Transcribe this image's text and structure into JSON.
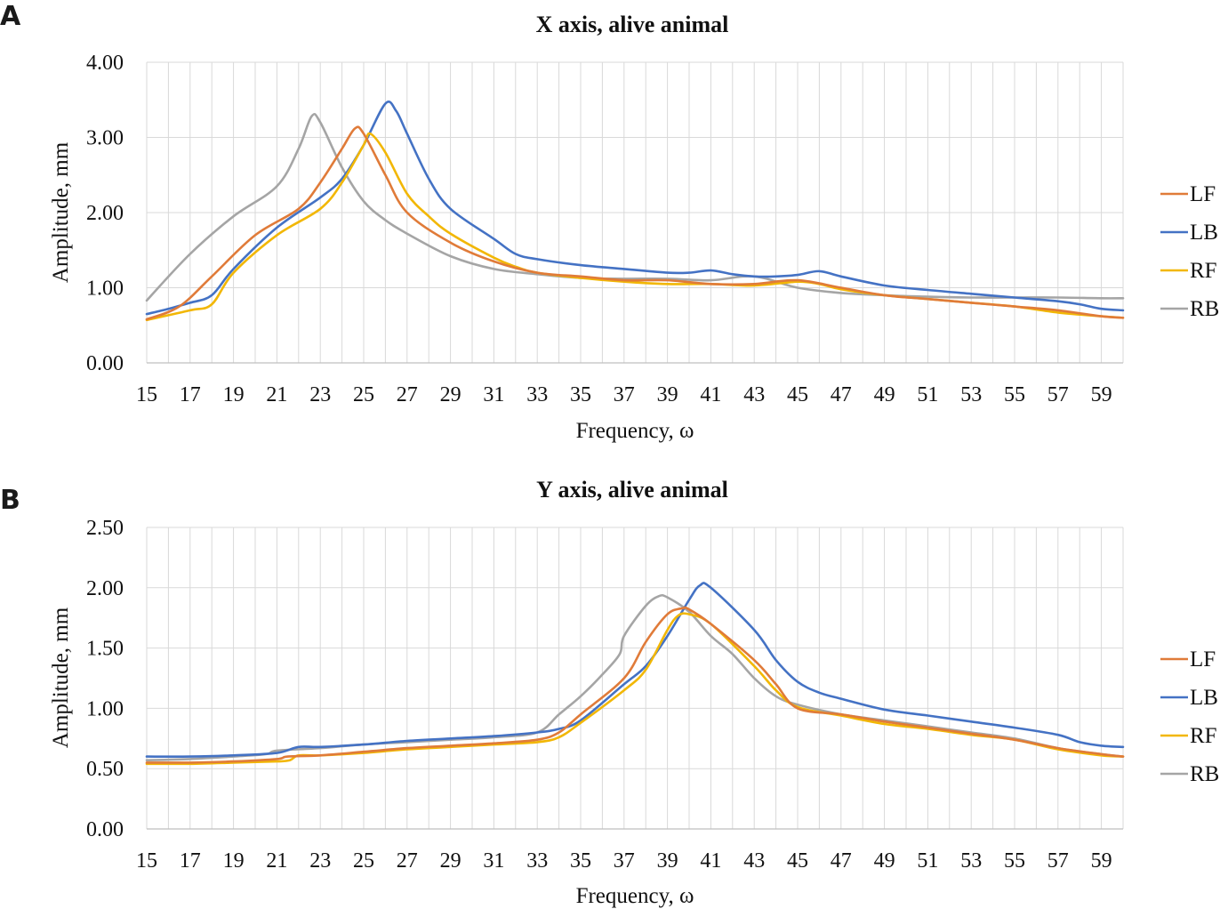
{
  "colors": {
    "LF": "#E07B39",
    "LB": "#4472C4",
    "RF": "#F2B705",
    "RB": "#A5A5A5"
  },
  "chart_data": [
    {
      "panel": "A",
      "type": "line",
      "title": "X axis, alive animal",
      "xlabel": "Frequency, ω",
      "ylabel": "Amplitude, mm",
      "xlim": [
        15,
        60
      ],
      "ylim": [
        0,
        4
      ],
      "xticks": [
        15,
        17,
        19,
        21,
        23,
        25,
        27,
        29,
        31,
        33,
        35,
        37,
        39,
        41,
        43,
        45,
        47,
        49,
        51,
        53,
        55,
        57,
        59
      ],
      "yticks": [
        "0.00",
        "1.00",
        "2.00",
        "3.00",
        "4.00"
      ],
      "ytick_values": [
        0,
        1,
        2,
        3,
        4
      ],
      "grid": "vertical-and-horizontal",
      "legend_position": "right",
      "series": [
        {
          "name": "LF",
          "x": [
            15,
            16.5,
            18,
            20,
            22,
            23,
            24,
            24.6,
            25,
            26,
            27,
            29,
            31,
            33,
            35,
            37,
            39,
            41,
            43,
            45,
            47,
            49,
            51,
            53,
            55,
            57,
            59,
            60
          ],
          "y": [
            0.58,
            0.75,
            1.15,
            1.7,
            2.05,
            2.4,
            2.85,
            3.12,
            3.05,
            2.5,
            2.0,
            1.6,
            1.35,
            1.2,
            1.15,
            1.1,
            1.1,
            1.05,
            1.05,
            1.1,
            1.0,
            0.9,
            0.85,
            0.8,
            0.75,
            0.7,
            0.62,
            0.6
          ]
        },
        {
          "name": "LB",
          "x": [
            15,
            16,
            17,
            18,
            19,
            21,
            23,
            24,
            25,
            26,
            26.5,
            27,
            28,
            29,
            31,
            32,
            33,
            35,
            37,
            39,
            40,
            41,
            42,
            43,
            44,
            45,
            46,
            47,
            49,
            51,
            53,
            55,
            57,
            58,
            59,
            60
          ],
          "y": [
            0.65,
            0.72,
            0.8,
            0.9,
            1.25,
            1.8,
            2.2,
            2.45,
            2.9,
            3.45,
            3.35,
            3.05,
            2.45,
            2.05,
            1.65,
            1.45,
            1.38,
            1.3,
            1.25,
            1.2,
            1.2,
            1.23,
            1.18,
            1.15,
            1.15,
            1.17,
            1.22,
            1.15,
            1.03,
            0.97,
            0.92,
            0.87,
            0.82,
            0.78,
            0.72,
            0.7
          ]
        },
        {
          "name": "RF",
          "x": [
            15,
            17,
            18,
            19,
            21,
            23,
            24,
            25,
            25.3,
            26,
            27,
            28,
            29,
            31,
            32,
            33,
            35,
            37,
            39,
            41,
            43,
            45,
            46,
            47,
            49,
            51,
            53,
            55,
            57,
            59,
            60
          ],
          "y": [
            0.57,
            0.7,
            0.78,
            1.2,
            1.7,
            2.05,
            2.4,
            2.9,
            3.05,
            2.8,
            2.25,
            1.95,
            1.72,
            1.4,
            1.28,
            1.2,
            1.13,
            1.08,
            1.05,
            1.05,
            1.03,
            1.08,
            1.05,
            0.98,
            0.9,
            0.85,
            0.8,
            0.75,
            0.67,
            0.62,
            0.6
          ]
        },
        {
          "name": "RB",
          "x": [
            15,
            17,
            19,
            21,
            22,
            22.6,
            23,
            24,
            25,
            26,
            27,
            29,
            31,
            33,
            35,
            37,
            39,
            41,
            43,
            45,
            47,
            49,
            51,
            53,
            55,
            57,
            59,
            60
          ],
          "y": [
            0.83,
            1.45,
            1.95,
            2.35,
            2.85,
            3.28,
            3.2,
            2.6,
            2.15,
            1.9,
            1.72,
            1.42,
            1.25,
            1.18,
            1.13,
            1.12,
            1.12,
            1.1,
            1.15,
            1.0,
            0.93,
            0.9,
            0.88,
            0.87,
            0.87,
            0.87,
            0.86,
            0.86
          ]
        }
      ]
    },
    {
      "panel": "B",
      "type": "line",
      "title": "Y axis, alive animal",
      "xlabel": "Frequency, ω",
      "ylabel": "Amplitude, mm",
      "xlim": [
        15,
        60
      ],
      "ylim": [
        0,
        2.5
      ],
      "xticks": [
        15,
        17,
        19,
        21,
        23,
        25,
        27,
        29,
        31,
        33,
        35,
        37,
        39,
        41,
        43,
        45,
        47,
        49,
        51,
        53,
        55,
        57,
        59
      ],
      "yticks": [
        "0.00",
        "0.50",
        "1.00",
        "1.50",
        "2.00",
        "2.50"
      ],
      "ytick_values": [
        0,
        0.5,
        1,
        1.5,
        2,
        2.5
      ],
      "grid": "vertical-and-horizontal",
      "legend_position": "right",
      "series": [
        {
          "name": "LF",
          "x": [
            15,
            17,
            19,
            21,
            21.5,
            23,
            25,
            27,
            29,
            31,
            33,
            34,
            35,
            37,
            38,
            39,
            39.7,
            40,
            41,
            43,
            44,
            45,
            47,
            49,
            51,
            53,
            55,
            57,
            59,
            60
          ],
          "y": [
            0.55,
            0.55,
            0.56,
            0.58,
            0.6,
            0.61,
            0.64,
            0.67,
            0.69,
            0.71,
            0.74,
            0.8,
            0.95,
            1.25,
            1.55,
            1.78,
            1.83,
            1.82,
            1.7,
            1.4,
            1.2,
            1.0,
            0.95,
            0.89,
            0.84,
            0.79,
            0.74,
            0.67,
            0.62,
            0.6
          ]
        },
        {
          "name": "LB",
          "x": [
            15,
            17,
            19,
            21,
            22,
            23,
            25,
            27,
            29,
            31,
            33,
            34,
            35,
            37,
            38,
            39,
            40,
            40.5,
            41,
            43,
            44,
            45,
            46,
            47,
            49,
            51,
            53,
            55,
            57,
            58,
            59,
            60
          ],
          "y": [
            0.6,
            0.6,
            0.61,
            0.63,
            0.68,
            0.68,
            0.7,
            0.73,
            0.75,
            0.77,
            0.8,
            0.83,
            0.9,
            1.2,
            1.35,
            1.6,
            1.9,
            2.02,
            2.0,
            1.65,
            1.4,
            1.22,
            1.13,
            1.08,
            0.99,
            0.94,
            0.89,
            0.84,
            0.78,
            0.72,
            0.69,
            0.68
          ]
        },
        {
          "name": "RF",
          "x": [
            15,
            17,
            19,
            21,
            21.6,
            22,
            23,
            25,
            27,
            29,
            31,
            33,
            34,
            35,
            37,
            38,
            39,
            39.5,
            40,
            41,
            43,
            44,
            45,
            47,
            49,
            51,
            53,
            55,
            57,
            59,
            60
          ],
          "y": [
            0.54,
            0.54,
            0.55,
            0.56,
            0.57,
            0.61,
            0.61,
            0.63,
            0.66,
            0.68,
            0.7,
            0.72,
            0.76,
            0.88,
            1.15,
            1.32,
            1.65,
            1.77,
            1.78,
            1.7,
            1.35,
            1.15,
            1.01,
            0.94,
            0.87,
            0.83,
            0.78,
            0.74,
            0.66,
            0.61,
            0.6
          ]
        },
        {
          "name": "RB",
          "x": [
            15,
            17,
            19,
            20.5,
            21,
            23,
            25,
            27,
            29,
            31,
            33,
            34,
            35,
            36,
            36.8,
            37,
            38,
            38.6,
            39,
            40,
            41,
            42,
            43,
            44,
            45,
            47,
            49,
            51,
            53,
            55,
            57,
            59,
            60
          ],
          "y": [
            0.57,
            0.58,
            0.6,
            0.62,
            0.65,
            0.67,
            0.7,
            0.72,
            0.74,
            0.76,
            0.8,
            0.95,
            1.1,
            1.28,
            1.45,
            1.6,
            1.85,
            1.93,
            1.92,
            1.8,
            1.6,
            1.45,
            1.25,
            1.1,
            1.03,
            0.95,
            0.9,
            0.85,
            0.8,
            0.75,
            0.67,
            0.62,
            0.6
          ]
        }
      ]
    }
  ],
  "panels": [
    {
      "letter": "A",
      "title": "X axis, alive animal",
      "xlabel": "Frequency, ω",
      "ylabel": "Amplitude, mm"
    },
    {
      "letter": "B",
      "title": "Y axis, alive animal",
      "xlabel": "Frequency, ω",
      "ylabel": "Amplitude, mm"
    }
  ]
}
